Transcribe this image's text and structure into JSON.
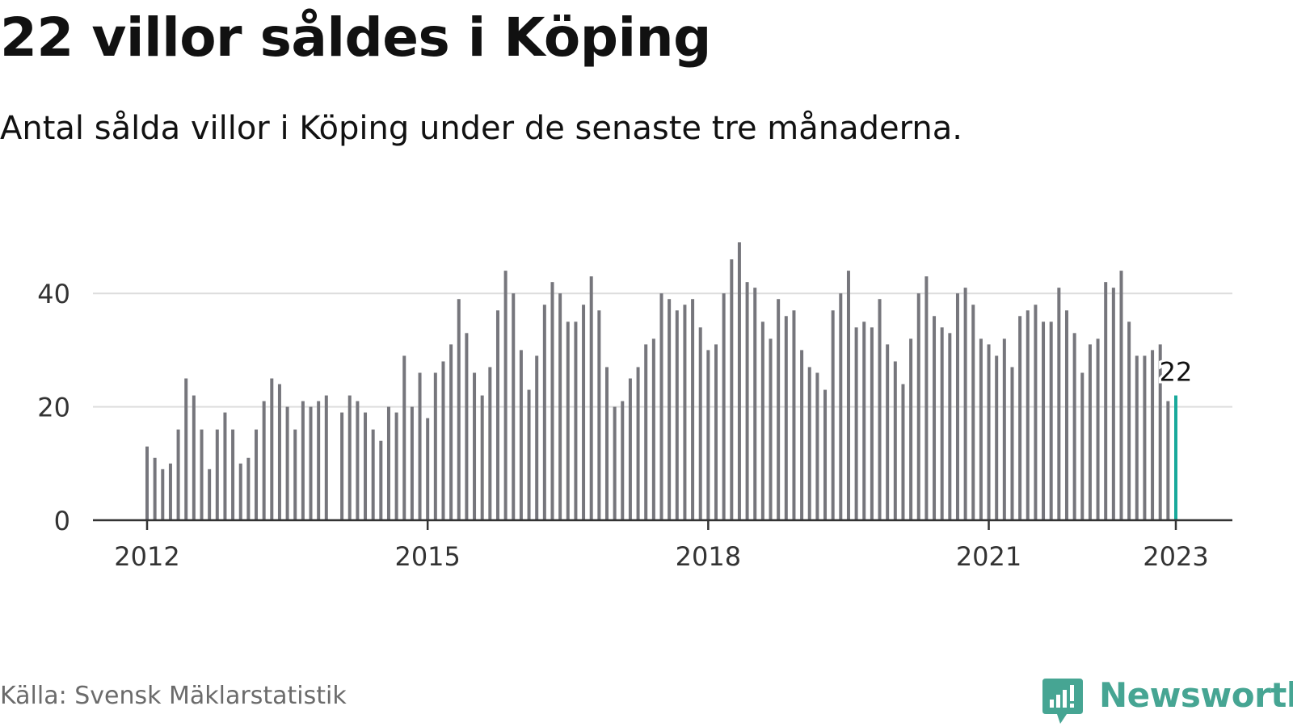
{
  "title": "22 villor såldes i Köping",
  "subtitle": "Antal sålda villor i Köping under de senaste tre månaderna.",
  "source": "Källa: Svensk Mäklarstatistik",
  "brand": "Newsworthy",
  "colors": {
    "bar": "#76767c",
    "highlight": "#19a99b",
    "grid": "#dddddd",
    "axis": "#333333",
    "brand": "#46a593"
  },
  "chart_data": {
    "type": "bar",
    "x_start": "2012-01",
    "x_end": "2023-01",
    "x_ticks": [
      "2012",
      "2015",
      "2018",
      "2021",
      "2023"
    ],
    "y_ticks": [
      "0",
      "20",
      "40"
    ],
    "ylim": [
      0,
      50
    ],
    "grid": true,
    "values": [
      13,
      11,
      9,
      10,
      16,
      25,
      22,
      16,
      9,
      16,
      19,
      16,
      10,
      11,
      16,
      21,
      25,
      24,
      20,
      16,
      21,
      20,
      21,
      22,
      null,
      19,
      22,
      21,
      19,
      16,
      14,
      20,
      19,
      29,
      20,
      26,
      18,
      26,
      28,
      31,
      39,
      33,
      26,
      22,
      27,
      37,
      44,
      40,
      30,
      23,
      29,
      38,
      42,
      40,
      35,
      35,
      38,
      43,
      37,
      27,
      20,
      21,
      25,
      27,
      31,
      32,
      40,
      39,
      37,
      38,
      39,
      34,
      30,
      31,
      40,
      46,
      49,
      42,
      41,
      35,
      32,
      39,
      36,
      37,
      30,
      27,
      26,
      23,
      37,
      40,
      44,
      34,
      35,
      34,
      39,
      31,
      28,
      24,
      32,
      40,
      43,
      36,
      34,
      33,
      40,
      41,
      38,
      32,
      31,
      29,
      32,
      27,
      36,
      37,
      38,
      35,
      35,
      41,
      37,
      33,
      26,
      31,
      32,
      42,
      41,
      44,
      35,
      29,
      29,
      30,
      31,
      21,
      22
    ],
    "last_value_label": "22"
  }
}
